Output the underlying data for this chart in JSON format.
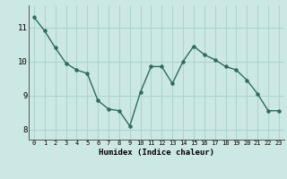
{
  "x": [
    0,
    1,
    2,
    3,
    4,
    5,
    6,
    7,
    8,
    9,
    10,
    11,
    12,
    13,
    14,
    15,
    16,
    17,
    18,
    19,
    20,
    21,
    22,
    23
  ],
  "y": [
    11.3,
    10.9,
    10.4,
    9.95,
    9.75,
    9.65,
    8.85,
    8.6,
    8.55,
    8.1,
    9.1,
    9.85,
    9.85,
    9.35,
    10.0,
    10.45,
    10.2,
    10.05,
    9.85,
    9.75,
    9.45,
    9.05,
    8.55,
    8.55
  ],
  "xlabel": "Humidex (Indice chaleur)",
  "yticks": [
    8,
    9,
    10,
    11
  ],
  "xticks": [
    0,
    1,
    2,
    3,
    4,
    5,
    6,
    7,
    8,
    9,
    10,
    11,
    12,
    13,
    14,
    15,
    16,
    17,
    18,
    19,
    20,
    21,
    22,
    23
  ],
  "line_color": "#2d6b5e",
  "marker_color": "#2d6b5e",
  "bg_color": "#cce8e4",
  "grid_color": "#aed4ce",
  "ylim": [
    7.7,
    11.65
  ],
  "xlim": [
    -0.5,
    23.5
  ]
}
